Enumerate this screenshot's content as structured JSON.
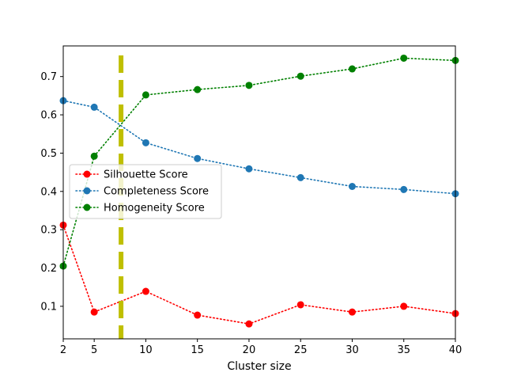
{
  "chart_data": {
    "type": "line",
    "xlabel": "Cluster size",
    "ylabel": "",
    "xlim": [
      2,
      40
    ],
    "ylim": [
      0.015,
      0.78
    ],
    "x_ticks": [
      2,
      5,
      10,
      15,
      20,
      25,
      30,
      35,
      40
    ],
    "y_ticks": [
      0.1,
      0.2,
      0.3,
      0.4,
      0.5,
      0.6,
      0.7
    ],
    "grid": false,
    "legend_position": "center-left",
    "x": [
      2,
      5,
      10,
      15,
      20,
      25,
      30,
      35,
      40
    ],
    "series": [
      {
        "name": "Silhouette Score",
        "color": "#ff0000",
        "line_style": "dotted",
        "values": [
          0.312,
          0.085,
          0.139,
          0.077,
          0.054,
          0.104,
          0.085,
          0.1,
          0.081
        ]
      },
      {
        "name": "Completeness Score",
        "color": "#1f77b4",
        "line_style": "dotted",
        "values": [
          0.637,
          0.62,
          0.527,
          0.486,
          0.459,
          0.436,
          0.413,
          0.405,
          0.394
        ]
      },
      {
        "name": "Homogeneity Score",
        "color": "#008000",
        "line_style": "dotted",
        "values": [
          0.205,
          0.492,
          0.652,
          0.666,
          0.677,
          0.701,
          0.72,
          0.748,
          0.742
        ]
      }
    ],
    "vertical_line": {
      "x": 7.6,
      "color": "#bfbf00",
      "line_style": "dashed"
    }
  }
}
